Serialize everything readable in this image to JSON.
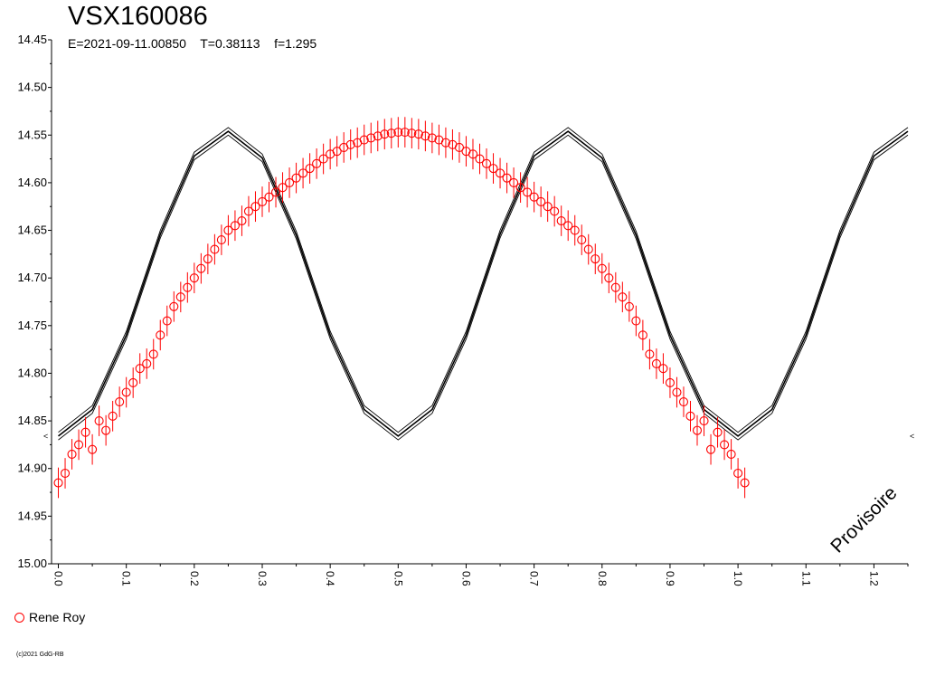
{
  "header": {
    "title": "VSX160086",
    "params": "E=2021-09-11.00850    T=0.38113    f=1.295"
  },
  "watermark": "Provisoire",
  "legend": {
    "label": "Rene Roy",
    "marker_color": "#ff0000"
  },
  "copyright": "(c)2021 GdG-RB",
  "chart_data": {
    "type": "scatter",
    "title": "VSX160086",
    "xlabel": "",
    "ylabel": "",
    "xlim": [
      -0.01,
      1.25
    ],
    "ylim": [
      15.0,
      14.45
    ],
    "y_inverted": true,
    "grid": false,
    "legend_position": "bottom-left",
    "x_ticks": [
      "0.0",
      "0.1",
      "0.2",
      "0.3",
      "0.4",
      "0.5",
      "0.6",
      "0.7",
      "0.8",
      "0.9",
      "1.0",
      "1.1",
      "1.2"
    ],
    "y_ticks": [
      "14.45",
      "14.50",
      "14.55",
      "14.60",
      "14.65",
      "14.70",
      "14.75",
      "14.80",
      "14.85",
      "14.90",
      "14.95",
      "15.00"
    ],
    "model": {
      "name": "fit",
      "phase": [
        0.0,
        0.05,
        0.1,
        0.15,
        0.2,
        0.25,
        0.3,
        0.35,
        0.4,
        0.45,
        0.5,
        0.55,
        0.6,
        0.65,
        0.7,
        0.75,
        0.8,
        0.85,
        0.9,
        0.95,
        1.0,
        1.05,
        1.1,
        1.15,
        1.2,
        1.25
      ],
      "mag": [
        14.866,
        14.838,
        14.76,
        14.654,
        14.572,
        14.546,
        14.574,
        14.655,
        14.76,
        14.838,
        14.866,
        14.838,
        14.76,
        14.654,
        14.572,
        14.546,
        14.574,
        14.655,
        14.76,
        14.838,
        14.866,
        14.838,
        14.76,
        14.654,
        14.572,
        14.546
      ],
      "band_offset": 0.004,
      "color": "#000000"
    },
    "series": [
      {
        "name": "Rene Roy",
        "color": "#ff0000",
        "points": [
          {
            "x": 0.0,
            "y": 14.915
          },
          {
            "x": 0.01,
            "y": 14.905
          },
          {
            "x": 0.02,
            "y": 14.885
          },
          {
            "x": 0.03,
            "y": 14.875
          },
          {
            "x": 0.04,
            "y": 14.862
          },
          {
            "x": 0.05,
            "y": 14.88
          },
          {
            "x": 0.06,
            "y": 14.85
          },
          {
            "x": 0.07,
            "y": 14.86
          },
          {
            "x": 0.08,
            "y": 14.845
          },
          {
            "x": 0.09,
            "y": 14.83
          },
          {
            "x": 0.1,
            "y": 14.82
          },
          {
            "x": 0.11,
            "y": 14.81
          },
          {
            "x": 0.12,
            "y": 14.795
          },
          {
            "x": 0.13,
            "y": 14.79
          },
          {
            "x": 0.14,
            "y": 14.78
          },
          {
            "x": 0.15,
            "y": 14.76
          },
          {
            "x": 0.16,
            "y": 14.745
          },
          {
            "x": 0.17,
            "y": 14.73
          },
          {
            "x": 0.18,
            "y": 14.72
          },
          {
            "x": 0.19,
            "y": 14.71
          },
          {
            "x": 0.2,
            "y": 14.7
          },
          {
            "x": 0.21,
            "y": 14.69
          },
          {
            "x": 0.22,
            "y": 14.68
          },
          {
            "x": 0.23,
            "y": 14.67
          },
          {
            "x": 0.24,
            "y": 14.66
          },
          {
            "x": 0.25,
            "y": 14.65
          },
          {
            "x": 0.26,
            "y": 14.645
          },
          {
            "x": 0.27,
            "y": 14.64
          },
          {
            "x": 0.28,
            "y": 14.63
          },
          {
            "x": 0.29,
            "y": 14.625
          },
          {
            "x": 0.3,
            "y": 14.62
          },
          {
            "x": 0.31,
            "y": 14.615
          },
          {
            "x": 0.32,
            "y": 14.61
          },
          {
            "x": 0.33,
            "y": 14.605
          },
          {
            "x": 0.34,
            "y": 14.6
          },
          {
            "x": 0.35,
            "y": 14.595
          },
          {
            "x": 0.36,
            "y": 14.59
          },
          {
            "x": 0.37,
            "y": 14.585
          },
          {
            "x": 0.38,
            "y": 14.58
          },
          {
            "x": 0.39,
            "y": 14.575
          },
          {
            "x": 0.4,
            "y": 14.57
          },
          {
            "x": 0.41,
            "y": 14.567
          },
          {
            "x": 0.42,
            "y": 14.563
          },
          {
            "x": 0.43,
            "y": 14.56
          },
          {
            "x": 0.44,
            "y": 14.558
          },
          {
            "x": 0.45,
            "y": 14.555
          },
          {
            "x": 0.46,
            "y": 14.553
          },
          {
            "x": 0.47,
            "y": 14.551
          },
          {
            "x": 0.48,
            "y": 14.549
          },
          {
            "x": 0.49,
            "y": 14.548
          },
          {
            "x": 0.5,
            "y": 14.547
          },
          {
            "x": 0.51,
            "y": 14.547
          },
          {
            "x": 0.52,
            "y": 14.548
          },
          {
            "x": 0.53,
            "y": 14.549
          },
          {
            "x": 0.54,
            "y": 14.551
          },
          {
            "x": 0.55,
            "y": 14.553
          },
          {
            "x": 0.56,
            "y": 14.555
          },
          {
            "x": 0.57,
            "y": 14.558
          },
          {
            "x": 0.58,
            "y": 14.56
          },
          {
            "x": 0.59,
            "y": 14.563
          },
          {
            "x": 0.6,
            "y": 14.567
          },
          {
            "x": 0.61,
            "y": 14.57
          },
          {
            "x": 0.62,
            "y": 14.575
          },
          {
            "x": 0.63,
            "y": 14.58
          },
          {
            "x": 0.64,
            "y": 14.585
          },
          {
            "x": 0.65,
            "y": 14.59
          },
          {
            "x": 0.66,
            "y": 14.595
          },
          {
            "x": 0.67,
            "y": 14.6
          },
          {
            "x": 0.68,
            "y": 14.605
          },
          {
            "x": 0.69,
            "y": 14.61
          },
          {
            "x": 0.7,
            "y": 14.615
          },
          {
            "x": 0.71,
            "y": 14.62
          },
          {
            "x": 0.72,
            "y": 14.625
          },
          {
            "x": 0.73,
            "y": 14.63
          },
          {
            "x": 0.74,
            "y": 14.64
          },
          {
            "x": 0.75,
            "y": 14.645
          },
          {
            "x": 0.76,
            "y": 14.65
          },
          {
            "x": 0.77,
            "y": 14.66
          },
          {
            "x": 0.78,
            "y": 14.67
          },
          {
            "x": 0.79,
            "y": 14.68
          },
          {
            "x": 0.8,
            "y": 14.69
          },
          {
            "x": 0.81,
            "y": 14.7
          },
          {
            "x": 0.82,
            "y": 14.71
          },
          {
            "x": 0.83,
            "y": 14.72
          },
          {
            "x": 0.84,
            "y": 14.73
          },
          {
            "x": 0.85,
            "y": 14.745
          },
          {
            "x": 0.86,
            "y": 14.76
          },
          {
            "x": 0.87,
            "y": 14.78
          },
          {
            "x": 0.88,
            "y": 14.79
          },
          {
            "x": 0.89,
            "y": 14.795
          },
          {
            "x": 0.9,
            "y": 14.81
          },
          {
            "x": 0.91,
            "y": 14.82
          },
          {
            "x": 0.92,
            "y": 14.83
          },
          {
            "x": 0.93,
            "y": 14.845
          },
          {
            "x": 0.94,
            "y": 14.86
          },
          {
            "x": 0.95,
            "y": 14.85
          },
          {
            "x": 0.96,
            "y": 14.88
          },
          {
            "x": 0.97,
            "y": 14.862
          },
          {
            "x": 0.98,
            "y": 14.875
          },
          {
            "x": 0.99,
            "y": 14.885
          },
          {
            "x": 1.0,
            "y": 14.905
          },
          {
            "x": 1.01,
            "y": 14.915
          }
        ]
      }
    ]
  }
}
